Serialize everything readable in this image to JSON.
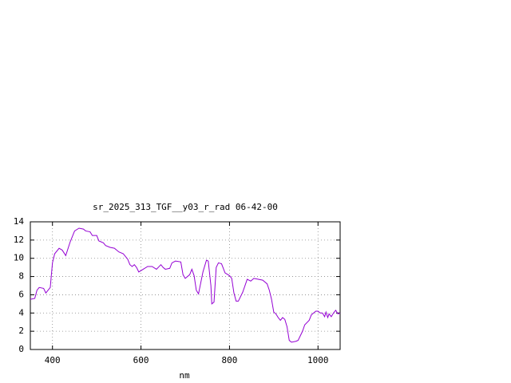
{
  "chart_data": {
    "type": "line",
    "title": "sr_2025_313_TGF__y03_r_rad 06-42-00",
    "x_label": "nm",
    "color": "#9400d3",
    "grid": true,
    "xlim": [
      350,
      1050
    ],
    "xticks": [
      400,
      600,
      800,
      1000
    ],
    "ylim": [
      0,
      14
    ],
    "yticks": [
      0,
      2,
      4,
      6,
      8,
      10,
      12,
      14
    ],
    "x": [
      350,
      360,
      365,
      370,
      380,
      385,
      395,
      400,
      405,
      415,
      422,
      430,
      440,
      450,
      460,
      470,
      475,
      485,
      490,
      500,
      505,
      515,
      520,
      530,
      540,
      550,
      560,
      570,
      575,
      580,
      585,
      590,
      595,
      605,
      615,
      625,
      635,
      645,
      650,
      655,
      665,
      670,
      678,
      690,
      695,
      700,
      710,
      715,
      720,
      725,
      730,
      740,
      748,
      752,
      758,
      760,
      765,
      770,
      775,
      782,
      790,
      800,
      805,
      810,
      815,
      820,
      830,
      840,
      848,
      855,
      865,
      875,
      885,
      890,
      895,
      900,
      905,
      910,
      915,
      920,
      925,
      930,
      935,
      940,
      950,
      955,
      960,
      965,
      970,
      980,
      985,
      995,
      1000,
      1005,
      1010,
      1015,
      1018,
      1022,
      1025,
      1030,
      1035,
      1040,
      1045,
      1050
    ],
    "values": [
      5.5,
      5.6,
      6.5,
      6.8,
      6.7,
      6.2,
      6.8,
      9.5,
      10.5,
      11.1,
      10.9,
      10.3,
      11.8,
      13.0,
      13.3,
      13.2,
      13.0,
      12.9,
      12.5,
      12.5,
      11.9,
      11.7,
      11.4,
      11.2,
      11.1,
      10.7,
      10.5,
      9.9,
      9.3,
      9.1,
      9.3,
      9.0,
      8.5,
      8.8,
      9.1,
      9.1,
      8.8,
      9.3,
      9.0,
      8.8,
      8.9,
      9.5,
      9.7,
      9.6,
      8.2,
      7.8,
      8.2,
      8.8,
      8.1,
      6.5,
      6.1,
      8.5,
      9.8,
      9.7,
      7.0,
      5.0,
      5.2,
      9.0,
      9.5,
      9.4,
      8.4,
      8.1,
      7.8,
      6.2,
      5.3,
      5.3,
      6.3,
      7.7,
      7.5,
      7.8,
      7.7,
      7.6,
      7.2,
      6.5,
      5.5,
      4.1,
      3.9,
      3.5,
      3.2,
      3.5,
      3.3,
      2.5,
      1.0,
      0.8,
      0.9,
      1.0,
      1.5,
      2.0,
      2.7,
      3.2,
      3.8,
      4.2,
      4.2,
      4.0,
      4.0,
      3.6,
      4.1,
      3.5,
      3.9,
      3.6,
      4.0,
      4.3,
      3.9,
      4.0
    ]
  }
}
